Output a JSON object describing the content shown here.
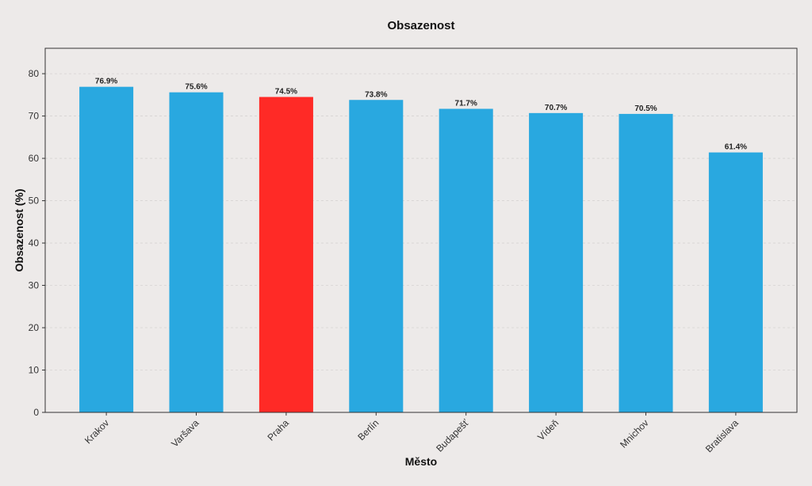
{
  "chart_data": {
    "type": "bar",
    "title": "Obsazenost",
    "xlabel": "Město",
    "ylabel": "Obsazenost (%)",
    "categories": [
      "Krakov",
      "Varšava",
      "Praha",
      "Berlín",
      "Budapešť",
      "Vídeň",
      "Mnichov",
      "Bratislava"
    ],
    "values": [
      76.9,
      75.6,
      74.5,
      73.8,
      71.7,
      70.7,
      70.5,
      61.4
    ],
    "value_labels": [
      "76.9%",
      "75.6%",
      "74.5%",
      "73.8%",
      "71.7%",
      "70.7%",
      "70.5%",
      "61.4%"
    ],
    "highlight": "Praha",
    "ylim": [
      0,
      86
    ],
    "yticks": [
      0,
      10,
      20,
      30,
      40,
      50,
      60,
      70,
      80
    ],
    "grid": true,
    "colors": {
      "default": "#29a8e0",
      "highlight": "#ff2a26",
      "background": "#edeae9"
    }
  }
}
